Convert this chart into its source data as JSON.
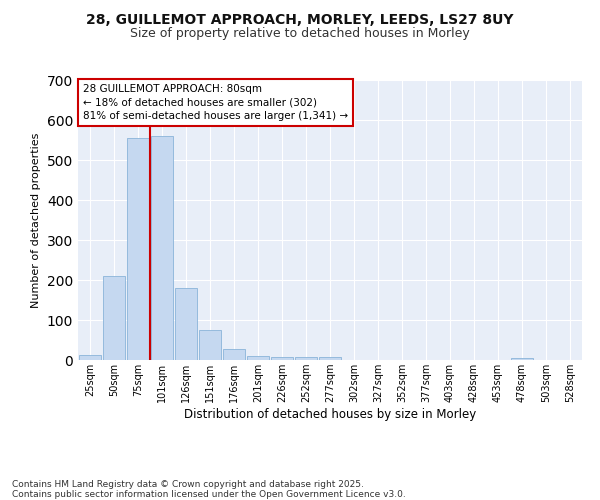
{
  "title_line1": "28, GUILLEMOT APPROACH, MORLEY, LEEDS, LS27 8UY",
  "title_line2": "Size of property relative to detached houses in Morley",
  "xlabel": "Distribution of detached houses by size in Morley",
  "ylabel": "Number of detached properties",
  "categories": [
    "25sqm",
    "50sqm",
    "75sqm",
    "101sqm",
    "126sqm",
    "151sqm",
    "176sqm",
    "201sqm",
    "226sqm",
    "252sqm",
    "277sqm",
    "302sqm",
    "327sqm",
    "352sqm",
    "377sqm",
    "403sqm",
    "428sqm",
    "453sqm",
    "478sqm",
    "503sqm",
    "528sqm"
  ],
  "values": [
    12,
    210,
    555,
    560,
    180,
    75,
    28,
    10,
    8,
    8,
    8,
    0,
    0,
    0,
    0,
    0,
    0,
    0,
    5,
    0,
    0
  ],
  "bar_color": "#c5d8f0",
  "bar_edge_color": "#8ab4d9",
  "vline_x": 2.5,
  "vline_color": "#cc0000",
  "annotation_text": "28 GUILLEMOT APPROACH: 80sqm\n← 18% of detached houses are smaller (302)\n81% of semi-detached houses are larger (1,341) →",
  "annotation_box_facecolor": "#ffffff",
  "annotation_box_edge": "#cc0000",
  "ylim": [
    0,
    700
  ],
  "yticks": [
    0,
    100,
    200,
    300,
    400,
    500,
    600,
    700
  ],
  "plot_bg": "#e8eef8",
  "grid_color": "#ffffff",
  "footer": "Contains HM Land Registry data © Crown copyright and database right 2025.\nContains public sector information licensed under the Open Government Licence v3.0."
}
